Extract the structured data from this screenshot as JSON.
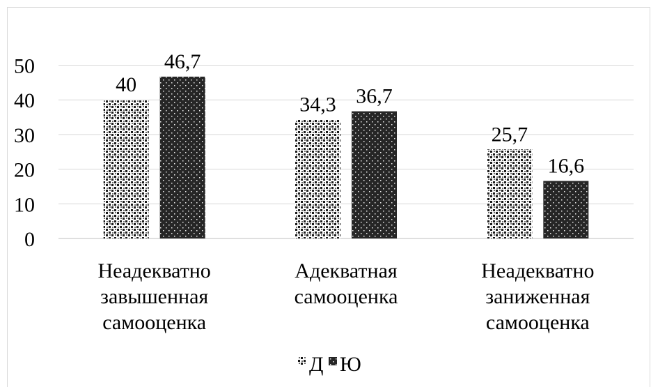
{
  "chart_data": {
    "type": "bar",
    "title": "",
    "xlabel": "",
    "ylabel": "",
    "categories": [
      [
        "Неадекватно",
        "завышенная",
        "самооценка"
      ],
      [
        "Адекватная",
        "самооценка"
      ],
      [
        "Неадекватно",
        "заниженная",
        "самооценка"
      ]
    ],
    "series": [
      {
        "name": "Д",
        "values": [
          40,
          34.3,
          25.7
        ],
        "value_labels": [
          "40",
          "34,3",
          "25,7"
        ],
        "pattern": "dotted-light"
      },
      {
        "name": "Ю",
        "values": [
          46.7,
          36.7,
          16.6
        ],
        "value_labels": [
          "46,7",
          "36,7",
          "16,6"
        ],
        "pattern": "dotted-dark"
      }
    ],
    "ylim": [
      0,
      50
    ],
    "y_ticks": [
      "0",
      "10",
      "20",
      "30",
      "40",
      "50"
    ],
    "grid": true,
    "legend_position": "bottom"
  }
}
